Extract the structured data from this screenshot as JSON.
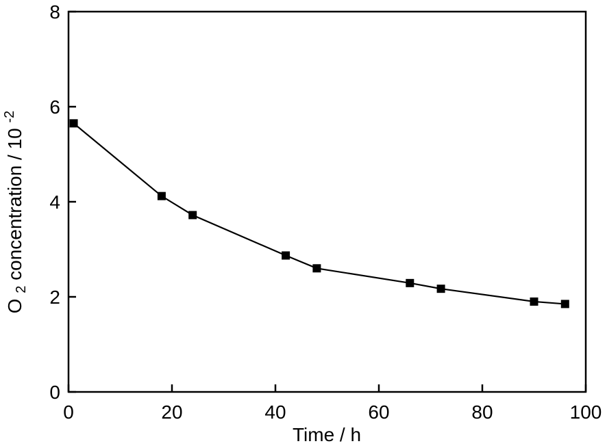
{
  "chart_data": {
    "type": "line",
    "title": "",
    "xlabel": "Time / h",
    "ylabel": "O₂ concentration / 10⁻²",
    "ylabel_parts": {
      "base": "O",
      "sub": "2",
      "mid": " concentration / 10",
      "sup": "-2"
    },
    "x": [
      1,
      18,
      24,
      42,
      48,
      66,
      72,
      90,
      96
    ],
    "y": [
      5.65,
      4.12,
      3.72,
      2.87,
      2.6,
      2.29,
      2.17,
      1.9,
      1.85
    ],
    "series_name": "O2 concentration",
    "xlim": [
      0,
      100
    ],
    "ylim": [
      0,
      8
    ],
    "x_ticks": [
      0,
      20,
      40,
      60,
      80,
      100
    ],
    "y_ticks": [
      0,
      2,
      4,
      6,
      8
    ],
    "marker": "filled-square",
    "marker_size_px": 12,
    "line_color": "#000000",
    "marker_color": "#000000",
    "frame_color": "#000000",
    "background": "#ffffff",
    "grid": false,
    "legend": null,
    "ticks_direction": "in"
  }
}
